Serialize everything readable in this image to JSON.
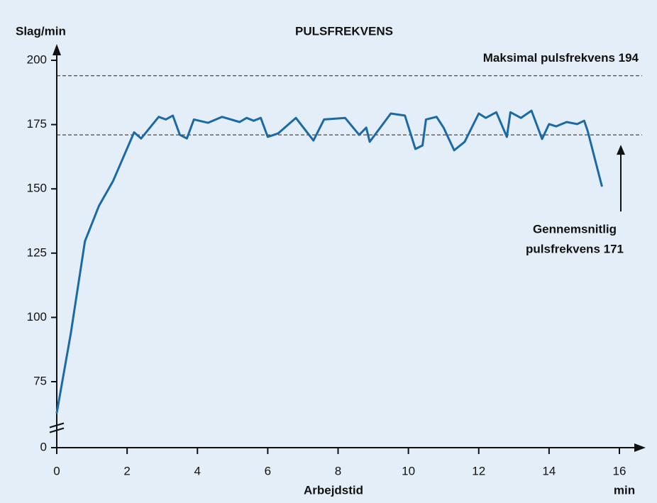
{
  "chart_data": {
    "type": "line",
    "title": "PULSFREKVENS",
    "y_label": "Slag/min",
    "x_label": "Arbejdstid",
    "x_unit": "min",
    "x": [
      0,
      0.4,
      0.8,
      1.2,
      1.6,
      2.2,
      2.4,
      2.9,
      3.1,
      3.3,
      3.5,
      3.7,
      3.9,
      4.3,
      4.7,
      5.2,
      5.4,
      5.6,
      5.8,
      6.0,
      6.3,
      6.8,
      7.3,
      7.6,
      8.2,
      8.6,
      8.8,
      8.9,
      9.5,
      9.9,
      10.2,
      10.4,
      10.5,
      10.8,
      11.0,
      11.3,
      11.6,
      12.0,
      12.2,
      12.5,
      12.8,
      12.9,
      13.2,
      13.5,
      13.8,
      14.0,
      14.2,
      14.5,
      14.8,
      15.0,
      15.1,
      15.5
    ],
    "series": [
      {
        "name": "Puls",
        "color": "#1c6aa5",
        "values": [
          62.9,
          93.8,
          129.6,
          143.4,
          153,
          172,
          169.6,
          178,
          177,
          178.5,
          171,
          169.6,
          177,
          175.7,
          178,
          176,
          177.6,
          176.5,
          177.6,
          170.2,
          171.6,
          177.6,
          168.8,
          177,
          177.6,
          171,
          173.8,
          168.3,
          179.3,
          178.5,
          165.5,
          166.9,
          177,
          178,
          173.8,
          165,
          168.3,
          179.3,
          177.6,
          179.8,
          170.2,
          179.8,
          177.6,
          180.4,
          169.4,
          175.2,
          174.3,
          176,
          175.2,
          176.5,
          172.4,
          151.2
        ]
      }
    ],
    "xlim": [
      0,
      16
    ],
    "xticks": [
      0,
      2,
      4,
      6,
      8,
      10,
      12,
      14,
      16
    ],
    "ylim": [
      0,
      200
    ],
    "yticks": [
      0,
      75,
      100,
      125,
      150,
      175,
      200
    ],
    "y_break": true,
    "reference_lines": [
      {
        "value": 194,
        "label": [
          "Maksimal pulsfrekvens 194"
        ]
      },
      {
        "value": 171,
        "label": [
          "Gennemsnitlig",
          "pulsfrekvens 171"
        ]
      }
    ]
  }
}
